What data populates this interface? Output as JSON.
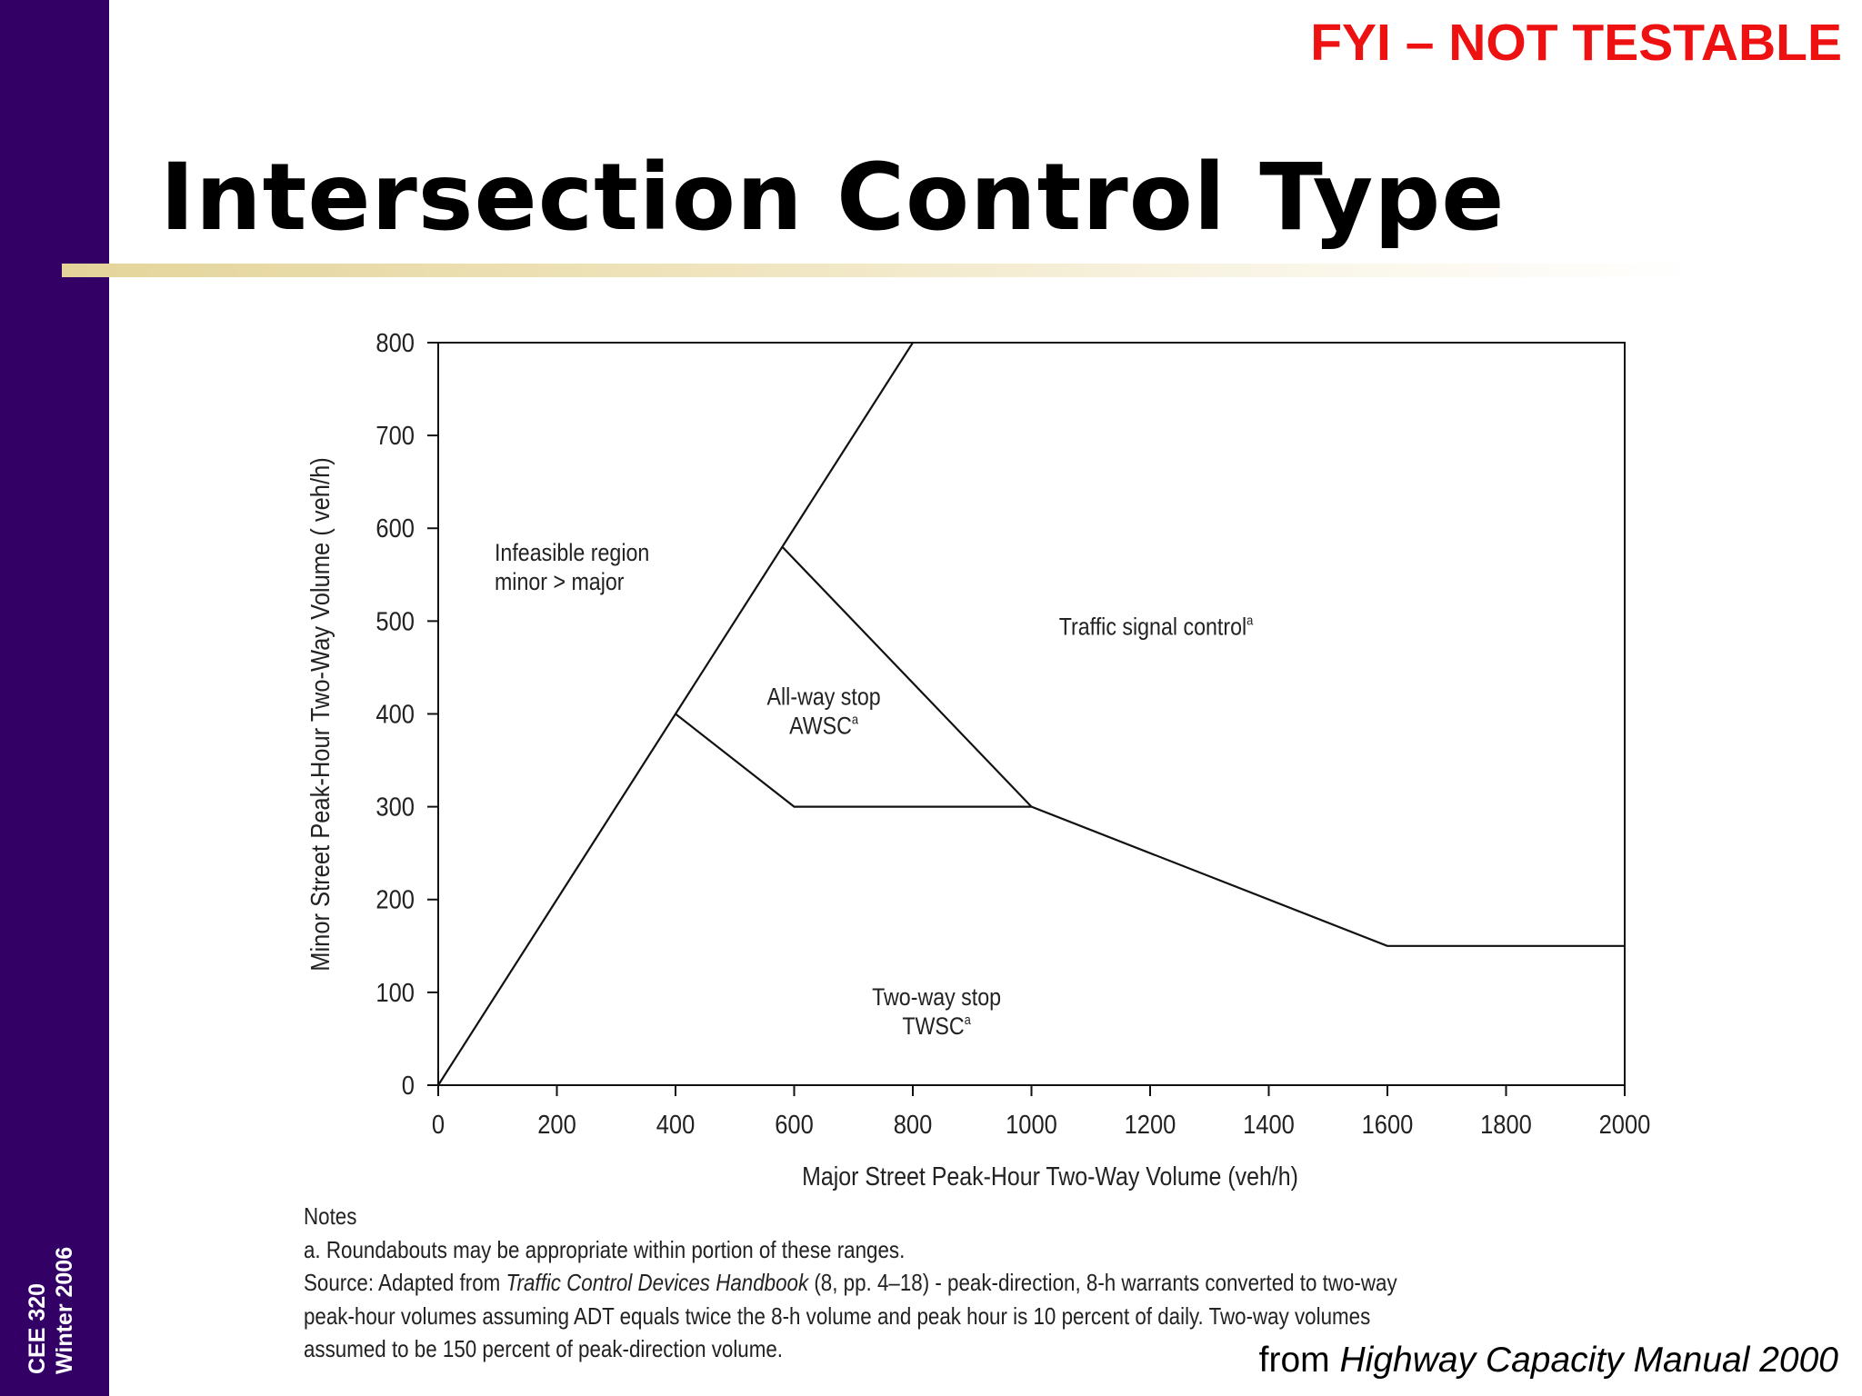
{
  "slide": {
    "corner_label": "FYI – NOT TESTABLE",
    "title": "Intersection Control Type",
    "sidebar_line1": "CEE 320",
    "sidebar_line2": "Winter 2006",
    "attribution_prefix": "from ",
    "attribution_source": "Highway Capacity Manual 2000",
    "colors": {
      "sidebar": "#330066",
      "corner_label": "#ee1111",
      "rule": "#e4d49a"
    }
  },
  "notes": {
    "heading": "Notes",
    "line_a": "a.  Roundabouts may be appropriate within portion of these ranges.",
    "source_prefix": "Source: Adapted from ",
    "source_title": "Traffic Control Devices Handbook",
    "source_ref": " (8, pp. 4–18) - peak-direction, 8-h warrants converted to two-way",
    "line_3": "peak-hour volumes assuming ADT equals twice the 8-h volume and peak hour is 10 percent of daily.  Two-way volumes",
    "line_4": "assumed to be 150 percent of peak-direction volume."
  },
  "chart_data": {
    "type": "line",
    "xlabel": "Major Street Peak-Hour Two-Way Volume (veh/h)",
    "ylabel": "Minor Street Peak-Hour Two-Way Volume ( veh/h)",
    "xlim": [
      0,
      2000
    ],
    "ylim": [
      0,
      800
    ],
    "xticks": [
      0,
      200,
      400,
      600,
      800,
      1000,
      1200,
      1400,
      1600,
      1800,
      2000
    ],
    "yticks": [
      0,
      100,
      200,
      300,
      400,
      500,
      600,
      700,
      800
    ],
    "grid": false,
    "lines": [
      {
        "points": [
          [
            0,
            0
          ],
          [
            800,
            800
          ]
        ]
      },
      {
        "points": [
          [
            400,
            400
          ],
          [
            600,
            300
          ],
          [
            1000,
            300
          ],
          [
            1600,
            150
          ],
          [
            2000,
            150
          ]
        ]
      },
      {
        "points": [
          [
            580,
            580
          ],
          [
            1000,
            300
          ]
        ]
      }
    ],
    "regions": [
      {
        "line1": "Infeasible region",
        "line2": "minor > major",
        "x": 95,
        "y": 565,
        "anchor": "start"
      },
      {
        "line1": "All-way stop",
        "line2": "AWSC",
        "sup": "a",
        "x": 650,
        "y": 410,
        "anchor": "middle"
      },
      {
        "line1": "Traffic signal control",
        "sup": "a",
        "x": 1210,
        "y": 485,
        "anchor": "middle"
      },
      {
        "line1": "Two-way stop",
        "line2": "TWSC",
        "sup": "a",
        "x": 840,
        "y": 86,
        "anchor": "middle"
      }
    ]
  }
}
